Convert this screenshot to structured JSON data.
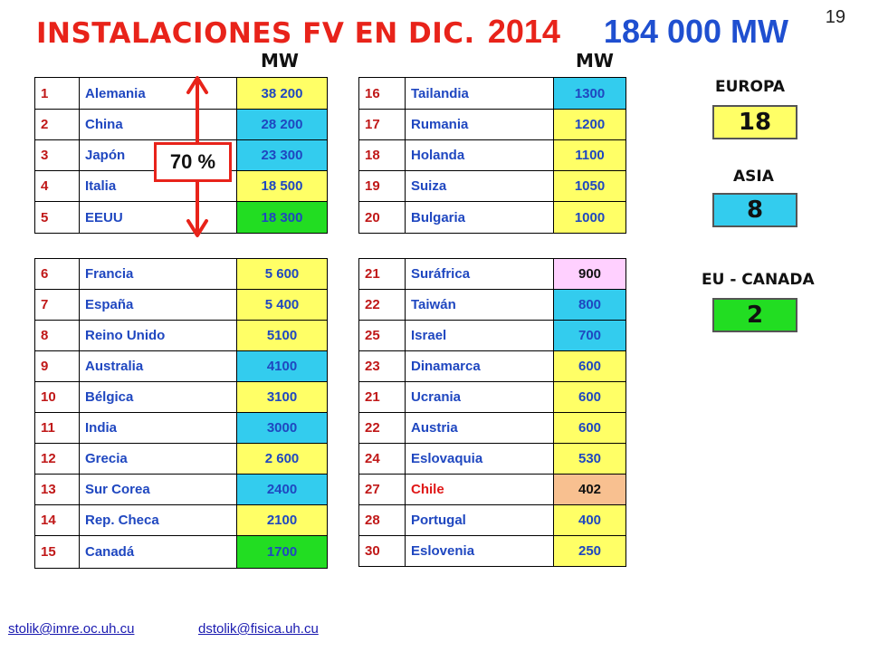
{
  "title": {
    "part1": "INSTALACIONES FV EN  DIC.",
    "year": "2014",
    "total": "184 000 MW"
  },
  "slide_number": "19",
  "headers": {
    "mw_left": "MW",
    "mw_right": "MW"
  },
  "colors": {
    "yellow": "#ffff66",
    "cyan": "#33ccee",
    "green": "#22dd22",
    "pink": "#ffd0ff",
    "orange": "#f8c090",
    "red": "#e8231a",
    "blue": "#1f4fd0"
  },
  "tables": {
    "left_top": [
      {
        "rank": "1",
        "country": "Alemania",
        "mw": "38 200",
        "color": "yellow"
      },
      {
        "rank": "2",
        "country": "China",
        "mw": "28 200",
        "color": "cyan"
      },
      {
        "rank": "3",
        "country": "Japón",
        "mw": "23 300",
        "color": "cyan"
      },
      {
        "rank": "4",
        "country": "Italia",
        "mw": "18 500",
        "color": "yellow"
      },
      {
        "rank": "5",
        "country": "EEUU",
        "mw": "18 300",
        "color": "green"
      }
    ],
    "left_bottom": [
      {
        "rank": "6",
        "country": "Francia",
        "mw": "5 600",
        "color": "yellow"
      },
      {
        "rank": "7",
        "country": "España",
        "mw": "5 400",
        "color": "yellow"
      },
      {
        "rank": "8",
        "country": "Reino Unido",
        "mw": "5100",
        "color": "yellow"
      },
      {
        "rank": "9",
        "country": "Australia",
        "mw": "4100",
        "color": "cyan"
      },
      {
        "rank": "10",
        "country": "Bélgica",
        "mw": "3100",
        "color": "yellow"
      },
      {
        "rank": "11",
        "country": "India",
        "mw": "3000",
        "color": "cyan"
      },
      {
        "rank": "12",
        "country": "Grecia",
        "mw": "2 600",
        "color": "yellow"
      },
      {
        "rank": "13",
        "country": "Sur Corea",
        "mw": "2400",
        "color": "cyan"
      },
      {
        "rank": "14",
        "country": "Rep. Checa",
        "mw": "2100",
        "color": "yellow"
      },
      {
        "rank": "15",
        "country": "Canadá",
        "mw": "1700",
        "color": "green"
      }
    ],
    "right_top": [
      {
        "rank": "16",
        "country": "Tailandia",
        "mw": "1300",
        "color": "cyan"
      },
      {
        "rank": "17",
        "country": "Rumania",
        "mw": "1200",
        "color": "yellow"
      },
      {
        "rank": "18",
        "country": "Holanda",
        "mw": "1100",
        "color": "yellow"
      },
      {
        "rank": "19",
        "country": "Suiza",
        "mw": "1050",
        "color": "yellow"
      },
      {
        "rank": "20",
        "country": "Bulgaria",
        "mw": "1000",
        "color": "yellow"
      }
    ],
    "right_bottom": [
      {
        "rank": "21",
        "country": " Suráfrica",
        "mw": "900",
        "color": "pink"
      },
      {
        "rank": "22",
        "country": "Taiwán",
        "mw": "800",
        "color": "cyan"
      },
      {
        "rank": "25",
        "country": "Israel",
        "mw": "700",
        "color": "cyan"
      },
      {
        "rank": "23",
        "country": "Dinamarca",
        "mw": "600",
        "color": "yellow"
      },
      {
        "rank": "21",
        "country": "Ucrania",
        "mw": "600",
        "color": "yellow"
      },
      {
        "rank": "22",
        "country": "Austria",
        "mw": "600",
        "color": "yellow"
      },
      {
        "rank": "24",
        "country": "Eslovaquia",
        "mw": "530",
        "color": "yellow"
      },
      {
        "rank": "27",
        "country": "Chile",
        "mw": "402",
        "color": "orange",
        "name_red": true
      },
      {
        "rank": "28",
        "country": "Portugal",
        "mw": "400",
        "color": "yellow"
      },
      {
        "rank": "30",
        "country": "Eslovenia",
        "mw": "250",
        "color": "yellow"
      }
    ]
  },
  "top5_share": "70 %",
  "regions": [
    {
      "label": "EUROPA",
      "count": "18",
      "color": "yellow"
    },
    {
      "label": "ASIA",
      "count": "8",
      "color": "cyan"
    },
    {
      "label": "EU - CANADA",
      "count": "2",
      "color": "green"
    }
  ],
  "emails": [
    "stolik@imre.oc.uh.cu",
    "dstolik@fisica.uh.cu"
  ]
}
